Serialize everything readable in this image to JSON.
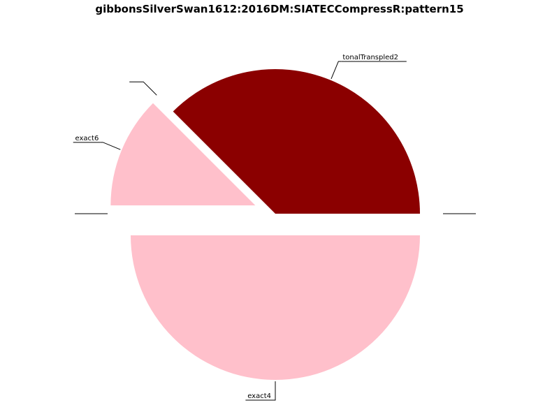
{
  "chart_data": {
    "type": "pie",
    "title": "gibbonsSilverSwan1612:2016DM:SIATECCompressR:pattern15",
    "slices": [
      {
        "label": "tonalTranspled2",
        "value": 37.5,
        "color": "#8b0000",
        "exploded": false
      },
      {
        "label": "",
        "value": 0.0,
        "color": "#ffc0cb",
        "exploded": true
      },
      {
        "label": "exact6",
        "value": 12.5,
        "color": "#ffc0cb",
        "exploded": true
      },
      {
        "label": "",
        "value": 0.0,
        "color": "#ffc0cb",
        "exploded": true
      },
      {
        "label": "exact4",
        "value": 50.0,
        "color": "#ffc0cb",
        "exploded": true
      },
      {
        "label": "",
        "value": 0.0,
        "color": "#ffc0cb",
        "exploded": true
      }
    ],
    "start_angle_deg": 0,
    "direction": "counterclockwise",
    "legend": "none"
  }
}
